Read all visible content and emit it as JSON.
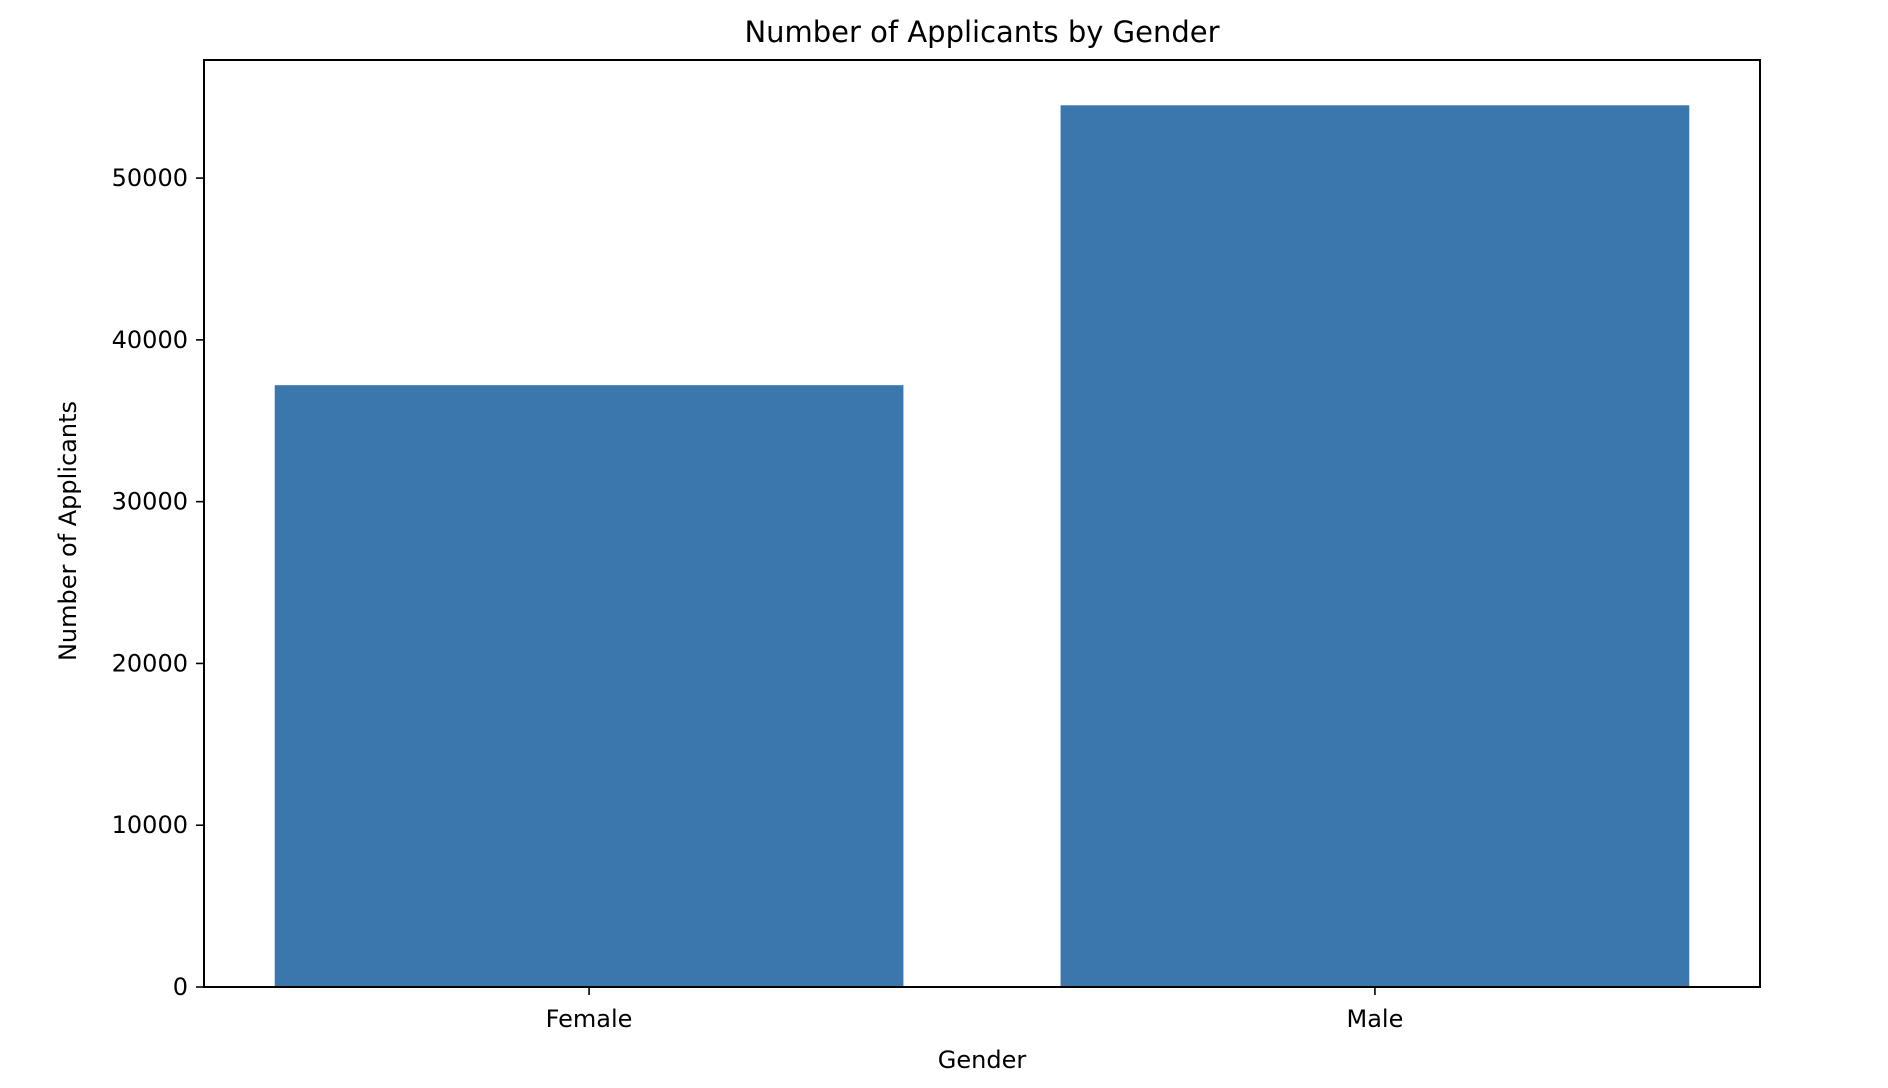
{
  "chart_data": {
    "type": "bar",
    "title": "Number of Applicants by Gender",
    "xlabel": "Gender",
    "ylabel": "Number of Applicants",
    "categories": [
      "Female",
      "Male"
    ],
    "values": [
      37200,
      54500
    ],
    "ylim": [
      0,
      57300
    ],
    "yticks": [
      0,
      10000,
      20000,
      30000,
      40000,
      50000
    ],
    "grid": false,
    "legend": "none",
    "bar_color": "#3b76ad"
  }
}
